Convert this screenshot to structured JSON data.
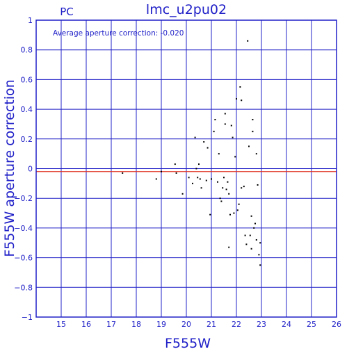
{
  "chart_data": {
    "type": "scatter",
    "title": "lmc_u2pu02",
    "corner_label": "PC",
    "annotation": "Average aperture correction:  -0.020",
    "xlabel": "F555W",
    "ylabel": "F555W aperture correction",
    "xlim": [
      14,
      26
    ],
    "ylim": [
      -1,
      1
    ],
    "xticks": [
      15,
      16,
      17,
      18,
      19,
      20,
      21,
      22,
      23,
      24,
      25,
      26
    ],
    "yticks": [
      -1,
      -0.8,
      -0.6,
      -0.4,
      -0.2,
      0,
      0.2,
      0.4,
      0.6,
      0.8,
      1
    ],
    "ytick_labels": [
      "−1",
      "−0.8",
      "−0.6",
      "−0.4",
      "−0.2",
      "0",
      "0.2",
      "0.4",
      "0.6",
      "0.8",
      "1"
    ],
    "grid": true,
    "reference_line": {
      "y": -0.02,
      "color": "#e03020"
    },
    "colors": {
      "axis": "#2020c8",
      "points": "#000000",
      "reference": "#e03020"
    },
    "points": [
      [
        17.45,
        -0.03
      ],
      [
        18.8,
        -0.07
      ],
      [
        19.0,
        -0.02
      ],
      [
        19.55,
        0.03
      ],
      [
        19.6,
        -0.03
      ],
      [
        19.85,
        -0.17
      ],
      [
        20.1,
        -0.06
      ],
      [
        20.25,
        -0.1
      ],
      [
        20.35,
        0.21
      ],
      [
        20.4,
        0.0
      ],
      [
        20.45,
        -0.06
      ],
      [
        20.5,
        0.03
      ],
      [
        20.55,
        -0.07
      ],
      [
        20.6,
        -0.13
      ],
      [
        20.7,
        0.18
      ],
      [
        20.8,
        -0.08
      ],
      [
        20.85,
        0.14
      ],
      [
        20.95,
        -0.31
      ],
      [
        21.0,
        -0.07
      ],
      [
        21.1,
        0.25
      ],
      [
        21.15,
        0.33
      ],
      [
        21.25,
        -0.09
      ],
      [
        21.3,
        0.1
      ],
      [
        21.35,
        -0.2
      ],
      [
        21.4,
        -0.22
      ],
      [
        21.45,
        -0.13
      ],
      [
        21.5,
        -0.06
      ],
      [
        21.55,
        0.3
      ],
      [
        21.55,
        0.37
      ],
      [
        21.6,
        -0.14
      ],
      [
        21.65,
        -0.09
      ],
      [
        21.7,
        -0.17
      ],
      [
        21.7,
        -0.53
      ],
      [
        21.75,
        -0.31
      ],
      [
        21.8,
        0.29
      ],
      [
        21.85,
        0.21
      ],
      [
        21.9,
        -0.3
      ],
      [
        21.95,
        0.08
      ],
      [
        22.0,
        0.47
      ],
      [
        22.05,
        -0.28
      ],
      [
        22.1,
        -0.24
      ],
      [
        22.15,
        0.55
      ],
      [
        22.2,
        0.46
      ],
      [
        22.2,
        -0.13
      ],
      [
        22.3,
        -0.12
      ],
      [
        22.35,
        -0.45
      ],
      [
        22.4,
        -0.51
      ],
      [
        22.45,
        0.86
      ],
      [
        22.5,
        0.15
      ],
      [
        22.55,
        -0.45
      ],
      [
        22.6,
        -0.32
      ],
      [
        22.65,
        0.33
      ],
      [
        22.65,
        0.25
      ],
      [
        22.7,
        -0.4
      ],
      [
        22.75,
        -0.37
      ],
      [
        22.8,
        -0.48
      ],
      [
        22.8,
        0.1
      ],
      [
        22.85,
        -0.11
      ],
      [
        22.9,
        -0.58
      ],
      [
        22.95,
        -0.65
      ],
      [
        22.95,
        -0.5
      ],
      [
        22.6,
        -0.54
      ]
    ]
  }
}
